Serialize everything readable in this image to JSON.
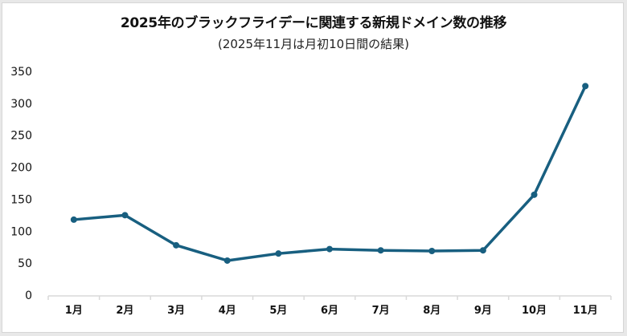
{
  "header": {
    "title": "2025年のブラックフライデーに関連する新規ドメイン数の推移",
    "subtitle": "(2025年11月は月初10日間の結果)"
  },
  "colors": {
    "line": "#185f80",
    "axis": "#d9d9d9",
    "background": "#ffffff"
  },
  "chart_data": {
    "type": "line",
    "title": "2025年のブラックフライデーに関連する新規ドメイン数の推移",
    "subtitle": "(2025年11月は月初10日間の結果)",
    "categories": [
      "1月",
      "2月",
      "3月",
      "4月",
      "5月",
      "6月",
      "7月",
      "8月",
      "9月",
      "10月",
      "11月"
    ],
    "series": [
      {
        "name": "新規ドメイン数",
        "values": [
          118,
          125,
          78,
          54,
          65,
          72,
          70,
          69,
          70,
          157,
          327
        ]
      }
    ],
    "xlabel": "",
    "ylabel": "",
    "ylim": [
      0,
      350
    ],
    "yticks": [
      0,
      50,
      100,
      150,
      200,
      250,
      300,
      350
    ],
    "grid": false,
    "legend": "none"
  }
}
